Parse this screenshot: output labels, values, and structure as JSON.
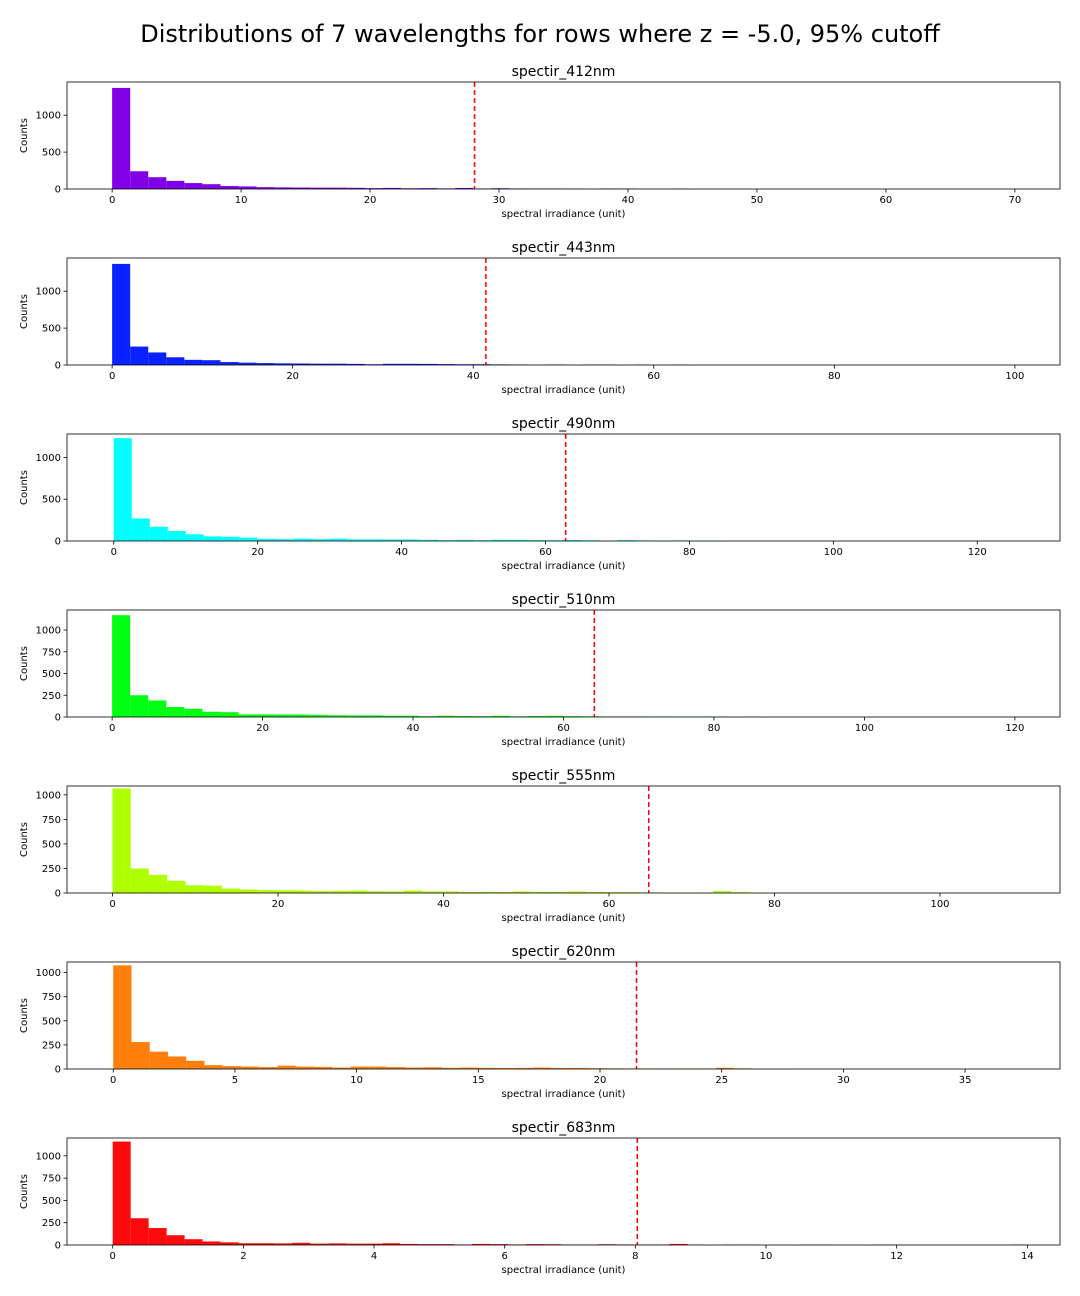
{
  "figure_title": "Distributions of 7 wavelengths for rows where z = -5.0, 95% cutoff",
  "chart_data": [
    {
      "type": "bar",
      "title": "spectir_412nm",
      "xlabel": "spectral irradiance (unit)",
      "ylabel": "Counts",
      "color": "#7f00e6",
      "xlim": [
        -3.5,
        73.5
      ],
      "ylim": [
        0,
        1450
      ],
      "xticks": [
        0,
        10,
        20,
        30,
        40,
        50,
        60,
        70
      ],
      "yticks": [
        0,
        500,
        1000
      ],
      "bin_width": 1.4,
      "counts": [
        1370,
        240,
        160,
        110,
        80,
        65,
        40,
        35,
        25,
        22,
        20,
        18,
        18,
        16,
        12,
        15,
        10,
        12,
        8,
        14,
        6,
        10,
        7,
        6,
        6,
        4,
        0,
        6,
        5,
        0,
        0,
        4,
        0,
        0,
        0
      ],
      "cutoff": 28.1
    },
    {
      "type": "bar",
      "title": "spectir_443nm",
      "xlabel": "spectral irradiance (unit)",
      "ylabel": "Counts",
      "color": "#0a22ff",
      "xlim": [
        -5,
        105
      ],
      "ylim": [
        0,
        1450
      ],
      "xticks": [
        0,
        20,
        40,
        60,
        80,
        100
      ],
      "yticks": [
        0,
        500,
        1000
      ],
      "bin_width": 2.0,
      "counts": [
        1370,
        250,
        170,
        105,
        70,
        65,
        40,
        32,
        26,
        22,
        20,
        18,
        18,
        15,
        10,
        16,
        16,
        15,
        12,
        10,
        10,
        8,
        6,
        0,
        6,
        0,
        5,
        5,
        0,
        4,
        0,
        3
      ],
      "cutoff": 41.4
    },
    {
      "type": "bar",
      "title": "spectir_490nm",
      "xlabel": "spectral irradiance (unit)",
      "ylabel": "Counts",
      "color": "#00ffff",
      "xlim": [
        -6.5,
        131.5
      ],
      "ylim": [
        0,
        1280
      ],
      "xticks": [
        0,
        20,
        40,
        60,
        80,
        100,
        120
      ],
      "yticks": [
        0,
        500,
        1000
      ],
      "bin_width": 2.5,
      "counts": [
        1230,
        270,
        170,
        120,
        80,
        55,
        50,
        40,
        25,
        22,
        28,
        22,
        28,
        20,
        20,
        18,
        18,
        15,
        10,
        14,
        10,
        15,
        15,
        10,
        8,
        12,
        8,
        5,
        10,
        6,
        5,
        6,
        5,
        4
      ],
      "cutoff": 62.8
    },
    {
      "type": "bar",
      "title": "spectir_510nm",
      "xlabel": "spectral irradiance (unit)",
      "ylabel": "Counts",
      "color": "#00ff10",
      "xlim": [
        -6,
        126
      ],
      "ylim": [
        0,
        1230
      ],
      "xticks": [
        0,
        20,
        40,
        60,
        80,
        100,
        120
      ],
      "yticks": [
        0,
        250,
        500,
        750,
        1000
      ],
      "bin_width": 2.4,
      "counts": [
        1170,
        250,
        190,
        115,
        95,
        60,
        55,
        30,
        30,
        28,
        28,
        25,
        20,
        18,
        18,
        15,
        15,
        10,
        15,
        12,
        10,
        14,
        8,
        12,
        14,
        10,
        8,
        6,
        6,
        6,
        5,
        4,
        4,
        5,
        3,
        4
      ],
      "cutoff": 64.1
    },
    {
      "type": "bar",
      "title": "spectir_555nm",
      "xlabel": "spectral irradiance (unit)",
      "ylabel": "Counts",
      "color": "#b0ff00",
      "xlim": [
        -5.5,
        114.5
      ],
      "ylim": [
        0,
        1090
      ],
      "xticks": [
        0,
        20,
        40,
        60,
        80,
        100
      ],
      "yticks": [
        0,
        250,
        500,
        750,
        1000
      ],
      "bin_width": 2.2,
      "counts": [
        1065,
        250,
        185,
        125,
        80,
        75,
        45,
        35,
        30,
        28,
        25,
        20,
        22,
        25,
        18,
        15,
        25,
        15,
        16,
        10,
        12,
        10,
        15,
        12,
        12,
        15,
        10,
        8,
        8,
        6,
        5,
        5,
        4,
        20,
        8,
        4
      ],
      "cutoff": 64.8
    },
    {
      "type": "bar",
      "title": "spectir_620nm",
      "xlabel": "spectral irradiance (unit)",
      "ylabel": "Counts",
      "color": "#ff7f0a",
      "xlim": [
        -1.9,
        38.9
      ],
      "ylim": [
        0,
        1110
      ],
      "xticks": [
        0,
        5,
        10,
        15,
        20,
        25,
        30,
        35
      ],
      "yticks": [
        0,
        250,
        500,
        750,
        1000
      ],
      "bin_width": 0.75,
      "counts": [
        1075,
        280,
        180,
        130,
        85,
        40,
        30,
        25,
        20,
        35,
        25,
        22,
        15,
        25,
        25,
        20,
        15,
        18,
        12,
        15,
        12,
        10,
        12,
        15,
        10,
        10,
        8,
        6,
        5,
        5,
        4,
        5,
        4,
        12,
        6,
        3,
        3
      ],
      "cutoff": 21.5
    },
    {
      "type": "bar",
      "title": "spectir_683nm",
      "xlabel": "spectral irradiance (unit)",
      "ylabel": "Counts",
      "color": "#ff0a0a",
      "xlim": [
        -0.7,
        14.5
      ],
      "ylim": [
        0,
        1200
      ],
      "xticks": [
        0,
        2,
        4,
        6,
        8,
        10,
        12,
        14
      ],
      "yticks": [
        0,
        250,
        500,
        750,
        1000
      ],
      "bin_width": 0.275,
      "counts": [
        1160,
        300,
        190,
        110,
        65,
        40,
        30,
        20,
        20,
        18,
        25,
        15,
        18,
        15,
        15,
        20,
        12,
        10,
        10,
        6,
        12,
        10,
        6,
        10,
        8,
        5,
        5,
        8,
        6,
        5,
        5,
        12,
        4,
        0,
        4,
        4,
        0,
        0,
        3,
        3,
        0,
        0,
        3,
        3,
        0,
        0,
        0,
        0,
        0,
        0,
        5,
        0
      ],
      "cutoff": 8.03
    }
  ]
}
